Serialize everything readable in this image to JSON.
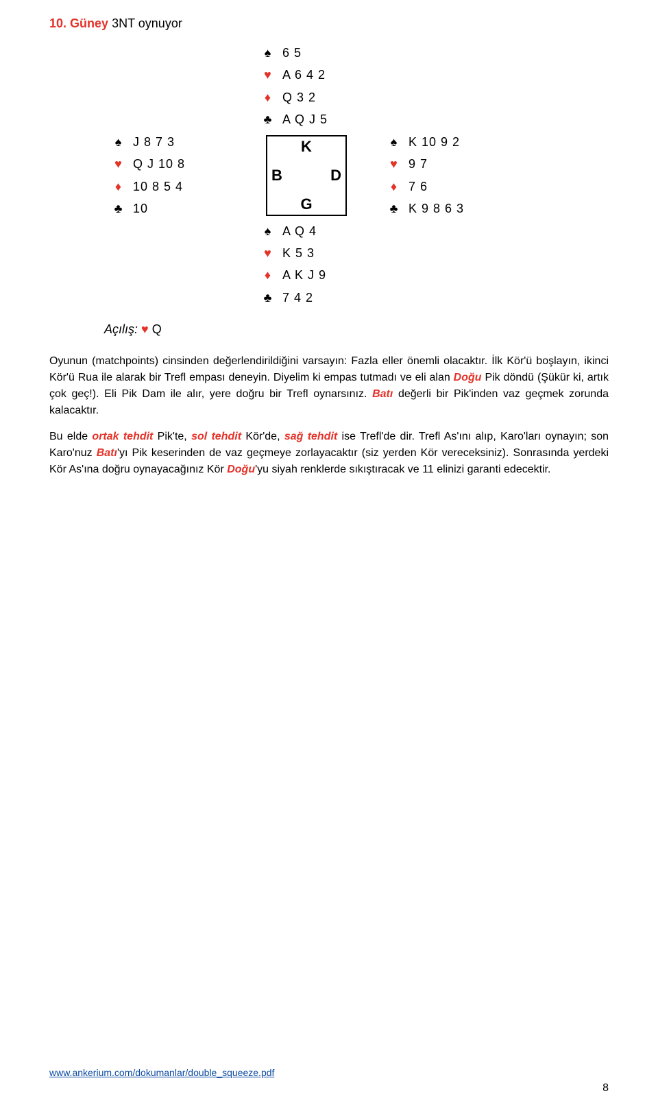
{
  "title": {
    "number": "10.",
    "declarer_text": "Güney",
    "contract": "3NT",
    "verb": "oynuyor"
  },
  "compass": {
    "N": "K",
    "S": "G",
    "W": "B",
    "E": "D"
  },
  "hands": {
    "north": {
      "spades": "6 5",
      "hearts": "A 6 4 2",
      "diamonds": "Q 3 2",
      "clubs": "A Q J 5"
    },
    "south": {
      "spades": "A Q 4",
      "hearts": "K 5 3",
      "diamonds": "A K J 9",
      "clubs": "7 4 2"
    },
    "west": {
      "spades": "J 8 7 3",
      "hearts": "Q J 10 8",
      "diamonds": "10 8 5 4",
      "clubs": "10"
    },
    "east": {
      "spades": "K 10 9 2",
      "hearts": "9 7",
      "diamonds": "7 6",
      "clubs": "K 9 8 6 3"
    }
  },
  "suit_symbols": {
    "spades": "♠",
    "hearts": "♥",
    "diamonds": "♦",
    "clubs": "♣"
  },
  "lead": {
    "label": "Açılış:",
    "suit": "hearts",
    "card": "Q"
  },
  "paragraphs": {
    "p1_a": "Oyunun (matchpoints) cinsinden değerlendirildiğini varsayın: Fazla eller önemli olacaktır. İlk Kör'ü boşlayın, ikinci Kör'ü Rua ile alarak bir Trefl empası deneyin. Diyelim ki empas tutmadı ve eli alan ",
    "p1_dogu": "Doğu",
    "p1_b": " Pik döndü (Şükür ki, artık çok geç!). Eli Pik Dam ile alır, yere doğru bir Trefl oynarsınız. ",
    "p1_bati": "Batı",
    "p1_c": " değerli bir Pik'inden vaz geçmek zorunda kalacaktır.",
    "p2_a": "Bu elde ",
    "p2_ortak": "ortak tehdit",
    "p2_b": " Pik'te, ",
    "p2_sol": "sol tehdit",
    "p2_c": " Kör'de, ",
    "p2_sag": "sağ tehdit",
    "p2_d": " ise Trefl'de dir. Trefl As'ını alıp, Karo'ları oynayın; son Karo'nuz ",
    "p2_bati": "Batı",
    "p2_e": "'yı Pik keserinden de vaz geçmeye zorlayacaktır (siz yerden Kör vereceksiniz). Sonrasında yerdeki Kör As'ına doğru oynayacağınız Kör ",
    "p2_dogu": "Doğu",
    "p2_f": "'yu siyah renklerde sıkıştıracak ve 11 elinizi garanti edecektir."
  },
  "footer": {
    "url": "www.ankerium.com/dokumanlar/double_squeeze.pdf",
    "page": "8"
  },
  "colors": {
    "red": "#e53229",
    "link": "#0b4aa2",
    "text": "#000000",
    "background": "#ffffff"
  }
}
